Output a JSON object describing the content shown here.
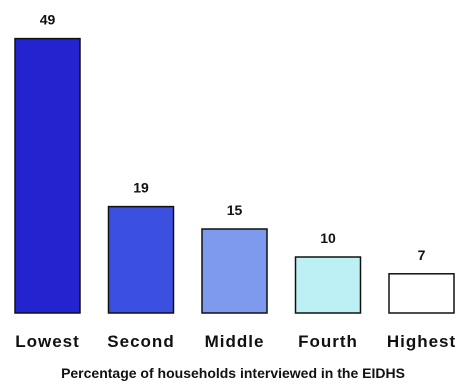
{
  "chart_data": {
    "type": "bar",
    "categories": [
      "Lowest",
      "Second",
      "Middle",
      "Fourth",
      "Highest"
    ],
    "values": [
      49,
      19,
      15,
      10,
      7
    ],
    "colors": [
      "#2323cf",
      "#3b4fe0",
      "#7d9aee",
      "#bdf0f4",
      "#ffffff"
    ],
    "title": "",
    "xlabel": "Percentage of households interviewed in the EIDHS",
    "ylabel": "",
    "ylim": [
      0,
      52
    ],
    "grid": false,
    "legend": "none"
  }
}
